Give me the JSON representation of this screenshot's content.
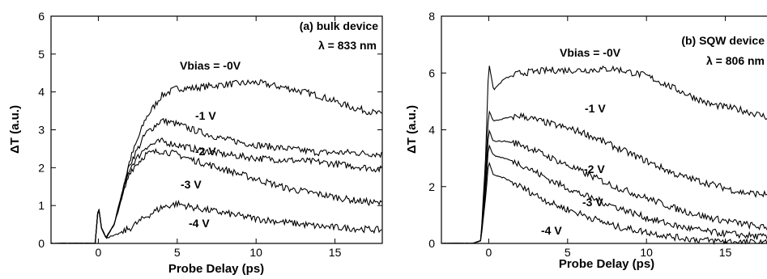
{
  "chart_data": [
    {
      "type": "line",
      "title": "(a) bulk device",
      "subtitle": "λ  = 833 nm",
      "xlabel": "Probe Delay (ps)",
      "ylabel": "ΔT (a.u.)",
      "xlim": [
        -3,
        18
      ],
      "ylim": [
        0,
        6
      ],
      "xticks": [
        0,
        5,
        10,
        15
      ],
      "yticks": [
        0,
        1,
        2,
        3,
        4,
        5,
        6
      ],
      "legend": "none",
      "grid": false,
      "series": [
        {
          "name": "Vbias = -0V",
          "x": [
            -3,
            -1,
            -0.2,
            0,
            0.2,
            0.5,
            1,
            2,
            3,
            4,
            5,
            6,
            8,
            10,
            12,
            14,
            16,
            18
          ],
          "y": [
            0,
            0,
            0,
            1.0,
            0.4,
            0.15,
            0.5,
            2.2,
            3.3,
            3.9,
            4.1,
            4.1,
            4.2,
            4.25,
            4.1,
            3.9,
            3.6,
            3.4
          ]
        },
        {
          "name": "-1 V",
          "x": [
            -3,
            -1,
            -0.2,
            0,
            0.2,
            0.5,
            1,
            2,
            3,
            4,
            5,
            6,
            8,
            10,
            12,
            14,
            16,
            18
          ],
          "y": [
            0,
            0,
            0,
            1.0,
            0.4,
            0.15,
            0.5,
            2.1,
            2.9,
            3.25,
            3.15,
            3.0,
            2.75,
            2.6,
            2.5,
            2.4,
            2.4,
            2.35
          ]
        },
        {
          "name": "-2 V",
          "x": [
            -3,
            -1,
            -0.2,
            0,
            0.2,
            0.5,
            1,
            2,
            3,
            4,
            5,
            6,
            8,
            10,
            12,
            14,
            16,
            18
          ],
          "y": [
            0,
            0,
            0,
            1.0,
            0.4,
            0.15,
            0.5,
            2.0,
            2.55,
            2.7,
            2.6,
            2.5,
            2.35,
            2.25,
            2.2,
            2.15,
            2.05,
            1.95
          ]
        },
        {
          "name": "-3 V",
          "x": [
            -3,
            -1,
            -0.2,
            0,
            0.2,
            0.5,
            1,
            2,
            3,
            4,
            5,
            6,
            8,
            10,
            12,
            14,
            16,
            18
          ],
          "y": [
            0,
            0,
            0,
            1.0,
            0.4,
            0.15,
            0.5,
            1.9,
            2.35,
            2.45,
            2.35,
            2.2,
            1.95,
            1.7,
            1.45,
            1.3,
            1.15,
            1.05
          ]
        },
        {
          "name": "-4 V",
          "x": [
            -3,
            -1,
            -0.2,
            0,
            0.2,
            0.5,
            1,
            2,
            3,
            4,
            5,
            6,
            8,
            10,
            12,
            14,
            16,
            18
          ],
          "y": [
            0,
            0,
            0,
            1.0,
            0.4,
            0.15,
            0.2,
            0.4,
            0.7,
            0.95,
            1.05,
            0.95,
            0.8,
            0.65,
            0.55,
            0.45,
            0.4,
            0.35
          ]
        }
      ],
      "annotations": [
        "Vbias = -0V",
        "-1 V",
        "-2 V",
        "-3 V",
        "-4 V"
      ]
    },
    {
      "type": "line",
      "title": "(b) SQW device",
      "subtitle": "λ = 806 nm",
      "xlabel": "Probe Delay (ps)",
      "ylabel": "ΔT (a.u.)",
      "xlim": [
        -3,
        18
      ],
      "ylim": [
        0,
        8
      ],
      "xticks": [
        0,
        5,
        10,
        15
      ],
      "yticks": [
        0,
        2,
        4,
        6,
        8
      ],
      "legend": "none",
      "grid": false,
      "series": [
        {
          "name": "Vbias = -0V",
          "x": [
            -3,
            -1,
            -0.5,
            -0.2,
            0,
            0.3,
            1,
            2,
            4,
            6,
            8,
            10,
            12,
            14,
            16,
            18
          ],
          "y": [
            0,
            0,
            0.1,
            3.0,
            6.4,
            5.4,
            5.8,
            6.0,
            6.1,
            6.1,
            6.15,
            5.9,
            5.4,
            4.9,
            4.7,
            4.4
          ]
        },
        {
          "name": "-1 V",
          "x": [
            -3,
            -1,
            -0.5,
            -0.2,
            0,
            0.3,
            1,
            2,
            4,
            6,
            8,
            10,
            12,
            14,
            16,
            18
          ],
          "y": [
            0,
            0,
            0.1,
            2.5,
            4.7,
            4.3,
            4.4,
            4.5,
            4.2,
            3.9,
            3.4,
            2.9,
            2.4,
            2.1,
            1.8,
            1.7
          ]
        },
        {
          "name": "-2 V",
          "x": [
            -3,
            -1,
            -0.5,
            -0.2,
            0,
            0.3,
            1,
            2,
            4,
            6,
            8,
            10,
            12,
            14,
            16,
            18
          ],
          "y": [
            0,
            0,
            0.1,
            2.2,
            4.0,
            3.6,
            3.6,
            3.5,
            3.0,
            2.5,
            2.0,
            1.6,
            1.2,
            0.9,
            0.7,
            0.5
          ]
        },
        {
          "name": "-3 V",
          "x": [
            -3,
            -1,
            -0.5,
            -0.2,
            0,
            0.3,
            1,
            2,
            4,
            6,
            8,
            10,
            12,
            14,
            16,
            18
          ],
          "y": [
            0,
            0,
            0.1,
            1.9,
            3.5,
            3.1,
            3.0,
            2.8,
            2.2,
            1.7,
            1.3,
            0.9,
            0.6,
            0.4,
            0.3,
            0.2
          ]
        },
        {
          "name": "-4 V",
          "x": [
            -3,
            -1,
            -0.5,
            -0.2,
            0,
            0.3,
            1,
            2,
            4,
            6,
            8,
            10,
            12,
            14,
            16,
            18
          ],
          "y": [
            0,
            0,
            0.1,
            1.6,
            2.9,
            2.4,
            2.3,
            2.0,
            1.4,
            1.0,
            0.6,
            0.4,
            0.2,
            0.1,
            0.05,
            0.0
          ]
        }
      ],
      "annotations": [
        "Vbias = -0V",
        "-1 V",
        "-2 V",
        "-3 V",
        "-4 V"
      ]
    }
  ]
}
